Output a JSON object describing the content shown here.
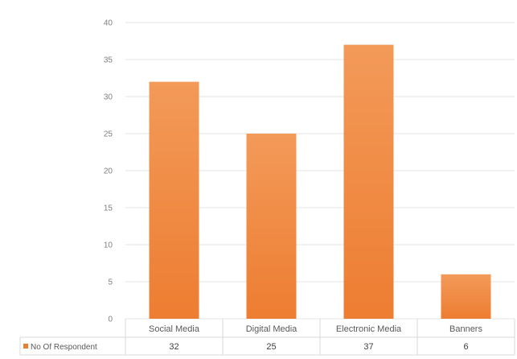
{
  "chart_data": {
    "type": "bar",
    "title": "",
    "xlabel": "",
    "ylabel": "",
    "categories": [
      "Social Media",
      "Digital Media",
      "Electronic Media",
      "Banners"
    ],
    "series": [
      {
        "name": "No Of Respondent",
        "values": [
          32,
          25,
          37,
          6
        ]
      }
    ],
    "ylim": [
      0,
      40
    ],
    "yticks": [
      0,
      5,
      10,
      15,
      20,
      25,
      30,
      35,
      40
    ],
    "grid": true,
    "legend": "bottom-left data table",
    "data_table": true,
    "colors": {
      "bar": "#ED7D31",
      "bar_light": "#F39A59",
      "grid": "#e6e6e6"
    }
  }
}
